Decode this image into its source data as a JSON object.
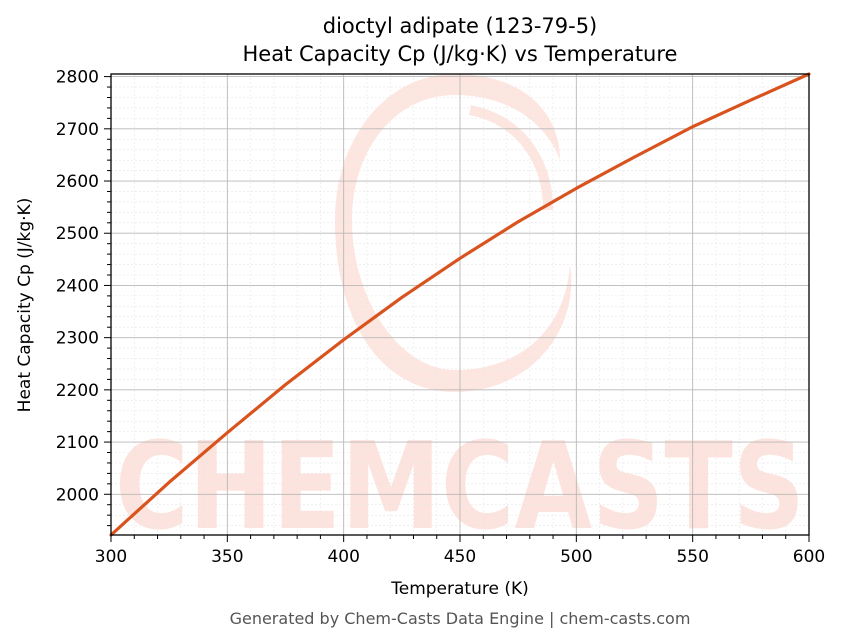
{
  "chart_data": {
    "type": "line",
    "title_line1": "dioctyl adipate (123-79-5)",
    "title_line2": "Heat Capacity Cp (J/kg·K) vs Temperature",
    "xlabel": "Temperature (K)",
    "ylabel": "Heat Capacity Cp (J/kg·K)",
    "xlim": [
      300,
      600
    ],
    "ylim": [
      1922,
      2805
    ],
    "x_ticks": [
      300,
      350,
      400,
      450,
      500,
      550,
      600
    ],
    "y_ticks": [
      2000,
      2100,
      2200,
      2300,
      2400,
      2500,
      2600,
      2700,
      2800
    ],
    "grid": true,
    "minor_grid": true,
    "series": [
      {
        "color": "#d9531e",
        "x": [
          300,
          325,
          350,
          375,
          400,
          425,
          450,
          475,
          500,
          525,
          550,
          575,
          600
        ],
        "y": [
          1922,
          2023,
          2118,
          2210,
          2296,
          2377,
          2452,
          2522,
          2586,
          2646,
          2704,
          2755,
          2805
        ]
      }
    ]
  },
  "watermark": {
    "text": "CHEMCASTS",
    "color": "#fde3dd"
  },
  "footer": "Generated by Chem-Casts Data Engine | chem-casts.com"
}
